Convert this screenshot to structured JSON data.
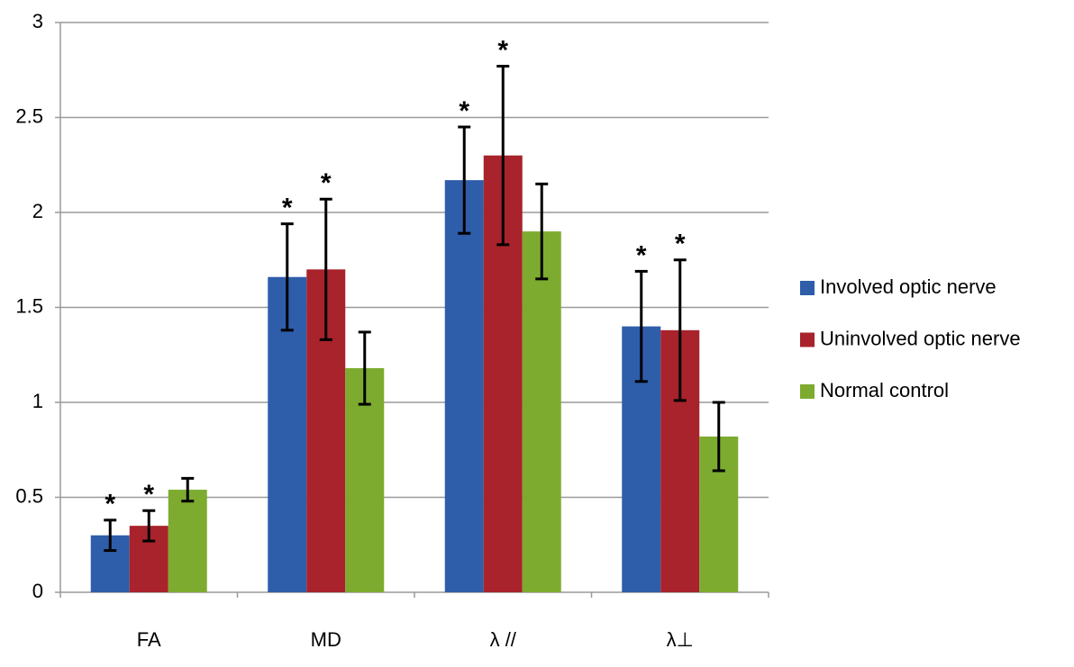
{
  "chart_data": {
    "type": "bar",
    "categories": [
      "FA",
      "MD",
      "λ //",
      "λ⊥"
    ],
    "series": [
      {
        "name": "Involved optic nerve",
        "color": "#2e5daa",
        "values": [
          0.3,
          1.66,
          2.17,
          1.4
        ],
        "errors": [
          0.08,
          0.28,
          0.28,
          0.29
        ],
        "annotations": [
          "*",
          "*",
          "*",
          "*"
        ]
      },
      {
        "name": "Uninvolved optic nerve",
        "color": "#a8232b",
        "values": [
          0.35,
          1.7,
          2.3,
          1.38
        ],
        "errors": [
          0.08,
          0.37,
          0.47,
          0.37
        ],
        "annotations": [
          "*",
          "*",
          "*",
          "*"
        ]
      },
      {
        "name": "Normal control",
        "color": "#7dab2f",
        "values": [
          0.54,
          1.18,
          1.9,
          0.82
        ],
        "errors": [
          0.06,
          0.19,
          0.25,
          0.18
        ]
      }
    ],
    "ylim": [
      0,
      3
    ],
    "yticks": [
      0,
      0.5,
      1,
      1.5,
      2,
      2.5,
      3
    ],
    "grid": true,
    "legend": "right"
  }
}
